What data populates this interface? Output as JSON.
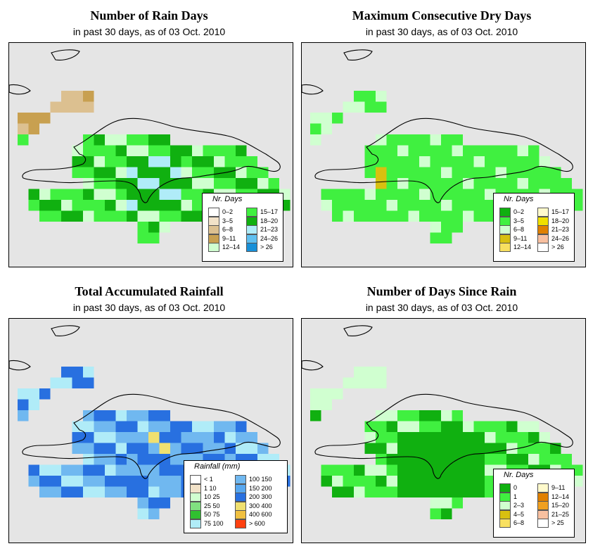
{
  "colors": {
    "background": "#e5e5e5",
    "rain_days": [
      "#ffffff",
      "#f2e2c8",
      "#dcc090",
      "#c8a050",
      "#d0ffd0",
      "#40f040",
      "#10b010",
      "#b0ecf8",
      "#60c0f0",
      "#1890d8"
    ],
    "dry_days": [
      "#10b010",
      "#40f040",
      "#d0ffd0",
      "#d8c010",
      "#f8e060",
      "#fffacc",
      "#f0e000",
      "#e08000",
      "#f8c0a0",
      "#ffffff"
    ],
    "rainfall": [
      "#ffffff",
      "#f2e2c8",
      "#d0ffd0",
      "#80e080",
      "#30c030",
      "#b0ecf8",
      "#70b8f0",
      "#58a8f0",
      "#2870e0",
      "#f0e070",
      "#f0c040",
      "#ff4010"
    ],
    "since_rain": [
      "#10b010",
      "#40f040",
      "#d0ffd0",
      "#d8c010",
      "#f8e060",
      "#fffacc",
      "#e08000",
      "#f0a020",
      "#f8c0a0",
      "#ffffff"
    ]
  },
  "panels": [
    {
      "id": "rain_days",
      "title": "Number of Rain Days",
      "subtitle": "in past 30 days, as of  03 Oct. 2010",
      "legend": {
        "title": "Nr. Days",
        "items": [
          "0–2",
          "3–5",
          "6–8",
          "9–11",
          "12–14",
          "15–17",
          "18–20",
          "21–23",
          "24–26",
          "> 26"
        ]
      }
    },
    {
      "id": "dry_days",
      "title": "Maximum Consecutive Dry Days",
      "subtitle": "in past 30 days, as of  03 Oct. 2010",
      "legend": {
        "title": "Nr. Days",
        "items": [
          "0–2",
          "3–5",
          "6–8",
          "9–11",
          "12–14",
          "15–17",
          "18–20",
          "21–23",
          "24–26",
          "> 26"
        ]
      }
    },
    {
      "id": "rainfall",
      "title": "Total Accumulated Rainfall",
      "subtitle": "in past 30 days, as of  03 Oct. 2010",
      "legend": {
        "title": "Rainfall (mm)",
        "items": [
          "< 1",
          "1    10",
          "10    25",
          "25    50",
          "50    75",
          "75   100",
          "100   150",
          "150   200",
          "200   300",
          "300   400",
          "400   600",
          "> 600"
        ]
      }
    },
    {
      "id": "since_rain",
      "title": "Number of Days Since Rain",
      "subtitle": "in past 30 days, as of  03 Oct. 2010",
      "legend": {
        "title": "Nr. Days",
        "items": [
          "0",
          "1",
          "2–3",
          "4–5",
          "6–8",
          "9–11",
          "12–14",
          "15–20",
          "21–25",
          "> 25"
        ]
      }
    }
  ]
}
